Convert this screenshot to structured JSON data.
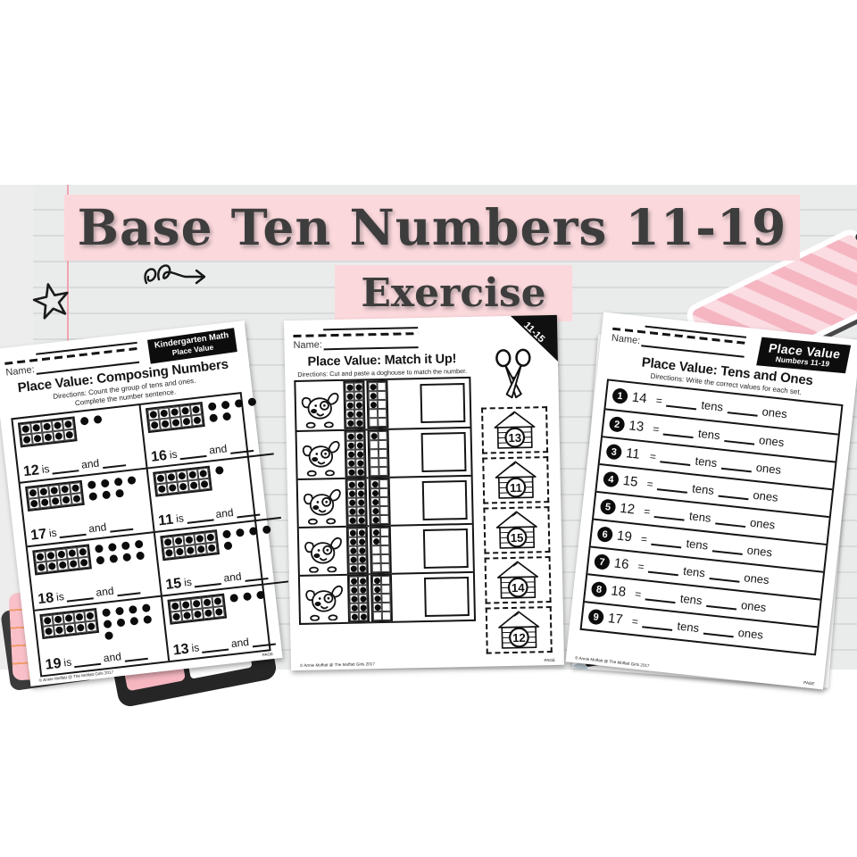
{
  "banner": {
    "title": "Base Ten Numbers 11-19",
    "subtitle": "Exercise",
    "bg_color": "#fbd8dc",
    "text_color": "#3e3d3d"
  },
  "background": {
    "band_color": "#ededed",
    "rule_color": "#d8dbdc",
    "margin_line_color": "#f2a3b0",
    "page_color": "#ffffff",
    "sticky_note_color": "#f9c0ca",
    "notepad_stripe_color": "#f5b6c2"
  },
  "sheet_left": {
    "badge_line1": "Kindergarten Math",
    "badge_line2": "Place Value",
    "name_label": "Name:",
    "title": "Place Value: Composing Numbers",
    "directions_line1": "Directions: Count the group of tens and ones.",
    "directions_line2": "Complete the number sentence.",
    "is_label": "is",
    "and_label": "and",
    "cells": [
      {
        "number": "12",
        "ones": 2
      },
      {
        "number": "16",
        "ones": 6
      },
      {
        "number": "17",
        "ones": 7
      },
      {
        "number": "11",
        "ones": 1
      },
      {
        "number": "18",
        "ones": 8
      },
      {
        "number": "15",
        "ones": 5
      },
      {
        "number": "19",
        "ones": 9
      },
      {
        "number": "13",
        "ones": 3
      }
    ],
    "footer": "© Annie Moffatt @ The Moffatt Girls 2017",
    "page_label": "PAGE"
  },
  "sheet_middle": {
    "corner_badge": "11-15",
    "name_label": "Name:",
    "title": "Place Value: Match it Up!",
    "directions": "Directions: Cut and paste a doghouse to match the number.",
    "rows": [
      {
        "tens_dots": 10,
        "ones_dots": 3
      },
      {
        "tens_dots": 10,
        "ones_dots": 1
      },
      {
        "tens_dots": 10,
        "ones_dots": 5
      },
      {
        "tens_dots": 10,
        "ones_dots": 2
      },
      {
        "tens_dots": 10,
        "ones_dots": 4
      }
    ],
    "doghouses": [
      "13",
      "11",
      "15",
      "14",
      "12"
    ],
    "footer": "© Annie Moffatt @ The Moffatt Girls 2017",
    "page_label": "PAGE"
  },
  "sheet_right": {
    "badge_line1": "Place Value",
    "badge_line2": "Numbers 11-19",
    "name_label": "Name:",
    "title": "Place Value: Tens and Ones",
    "directions": "Directions: Write the correct values for each set.",
    "equals_label": "=",
    "tens_label": "tens",
    "ones_label": "ones",
    "rows": [
      {
        "num": "1",
        "value": "14"
      },
      {
        "num": "2",
        "value": "13"
      },
      {
        "num": "3",
        "value": "11"
      },
      {
        "num": "4",
        "value": "15"
      },
      {
        "num": "5",
        "value": "12"
      },
      {
        "num": "6",
        "value": "19"
      },
      {
        "num": "7",
        "value": "16"
      },
      {
        "num": "8",
        "value": "18"
      },
      {
        "num": "9",
        "value": "17"
      }
    ],
    "footer": "© Annie Moffatt @ The Moffatt Girls 2017",
    "page_label": "PAGE"
  }
}
